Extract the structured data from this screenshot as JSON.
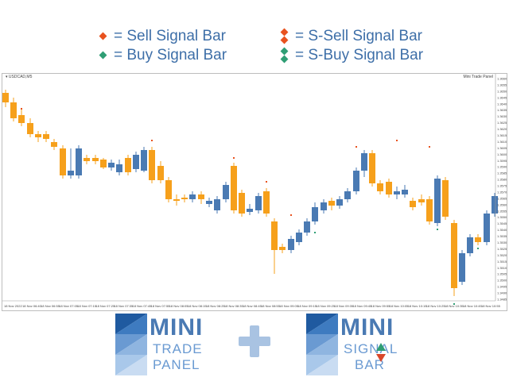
{
  "legend": {
    "sell": "= Sell Signal Bar",
    "buy": "= Buy Signal Bar",
    "s_sell": "= S-Sell Signal Bar",
    "s_buy": "= S-Buy Signal Bar",
    "sell_color": "#e8521f",
    "buy_color": "#2f9e74"
  },
  "chart": {
    "symbol_label": "▾ USDCAD,M5",
    "indicator_label": "Mini Trade Panel",
    "bull_color": "#4a7ab3",
    "bear_color": "#f6a01b",
    "price_labels": [
      "1.3660",
      "1.3655",
      "1.3650",
      "1.3645",
      "1.3640",
      "1.3635",
      "1.3630",
      "1.3625",
      "1.3620",
      "1.3615",
      "1.3610",
      "1.3605",
      "1.3600",
      "1.3595",
      "1.3590",
      "1.3585",
      "1.3580",
      "1.3575",
      "1.3570",
      "1.3565",
      "1.3560",
      "1.3555",
      "1.3550",
      "1.3545",
      "1.3540",
      "1.3535",
      "1.3530",
      "1.3525",
      "1.3520",
      "1.3515",
      "1.3510",
      "1.3505",
      "1.3500",
      "1.3495",
      "1.3490",
      "1.3485"
    ],
    "time_labels": [
      "18 Nov 2022",
      "18 Nov 06:40",
      "18 Nov 06:55",
      "18 Nov 07:05",
      "18 Nov 07:15",
      "18 Nov 07:25",
      "18 Nov 07:35",
      "18 Nov 07:45",
      "18 Nov 07:55",
      "18 Nov 08:05",
      "18 Nov 08:15",
      "18 Nov 08:25",
      "18 Nov 08:35",
      "18 Nov 08:45",
      "18 Nov 08:55",
      "18 Nov 09:05",
      "18 Nov 09:15",
      "18 Nov 09:25",
      "18 Nov 09:35",
      "18 Nov 09:45",
      "18 Nov 09:55",
      "18 Nov 10:05",
      "18 Nov 10:15",
      "18 Nov 10:25",
      "18 Nov 10:35",
      "18 Nov 10:45",
      "18 Nov 10:55"
    ]
  },
  "logos": {
    "left_line1": "MINI",
    "left_line2": "TRADE",
    "left_line3": "PANEL",
    "right_line1": "MINI",
    "right_line2": "SIGNAL",
    "right_line3": "BAR"
  }
}
